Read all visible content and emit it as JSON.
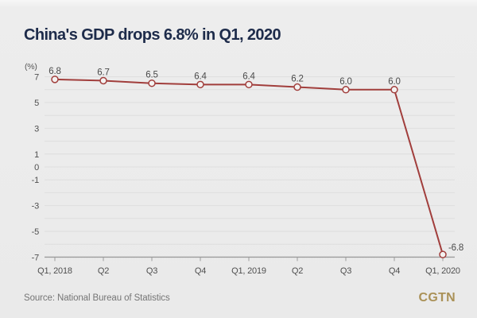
{
  "title": "China's GDP drops 6.8% in Q1, 2020",
  "chart_data": {
    "type": "line",
    "title": "China's GDP drops 6.8% in Q1, 2020",
    "unit_label": "(%)",
    "categories": [
      "Q1, 2018",
      "Q2",
      "Q3",
      "Q4",
      "Q1, 2019",
      "Q2",
      "Q3",
      "Q4",
      "Q1, 2020"
    ],
    "values": [
      6.8,
      6.7,
      6.5,
      6.4,
      6.4,
      6.2,
      6.0,
      6.0,
      -6.8
    ],
    "point_labels": [
      "6.8",
      "6.7",
      "6.5",
      "6.4",
      "6.4",
      "6.2",
      "6.0",
      "6.0",
      "-6.8"
    ],
    "ylabel": "(%)",
    "xlabel": "",
    "ylim": [
      -7,
      7
    ],
    "grid_step": 1,
    "grid": true,
    "legend_position": "none",
    "y_ticks_labeled": [
      7,
      5,
      3,
      1,
      0,
      -1,
      -3,
      -5,
      -7
    ],
    "line_color": "#a13e3c",
    "marker_fill": "#f4f2f1",
    "grid_color": "#dedede",
    "axis_color": "#9c9c9c",
    "title_color": "#1d2b4a"
  },
  "footer": {
    "source": "Source: National Bureau of Statistics",
    "logo": "CGTN",
    "logo_color": "#aa9157"
  }
}
